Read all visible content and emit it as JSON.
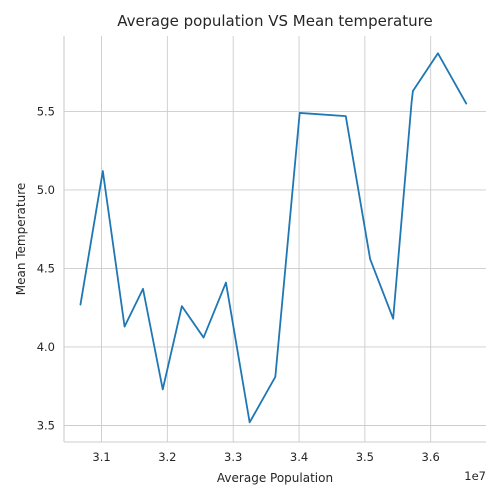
{
  "chart_data": {
    "type": "line",
    "title": "Average population VS Mean temperature",
    "xlabel": "Average Population",
    "ylabel": "Mean Temperature",
    "x_offset_label": "1e7",
    "xlim": [
      3.043,
      3.684
    ],
    "ylim": [
      3.395,
      5.98
    ],
    "x_ticks": [
      3.1,
      3.2,
      3.3,
      3.4,
      3.5,
      3.6
    ],
    "x_tick_labels": [
      "3.1",
      "3.2",
      "3.3",
      "3.4",
      "3.5",
      "3.6"
    ],
    "y_ticks": [
      3.5,
      4.0,
      4.5,
      5.0,
      5.5
    ],
    "y_tick_labels": [
      "3.5",
      "4.0",
      "4.5",
      "5.0",
      "5.5"
    ],
    "grid": true,
    "color": "#1f77b4",
    "series": [
      {
        "x": [
          3.068,
          3.102,
          3.135,
          3.163,
          3.193,
          3.222,
          3.255,
          3.289,
          3.325,
          3.364,
          3.401,
          3.471,
          3.508,
          3.543,
          3.571,
          3.573,
          3.611,
          3.654
        ],
        "y": [
          4.27,
          5.12,
          4.13,
          4.37,
          3.73,
          4.26,
          4.06,
          4.41,
          3.52,
          3.81,
          5.49,
          5.47,
          4.56,
          4.18,
          5.56,
          5.63,
          5.87,
          5.55
        ]
      }
    ]
  }
}
